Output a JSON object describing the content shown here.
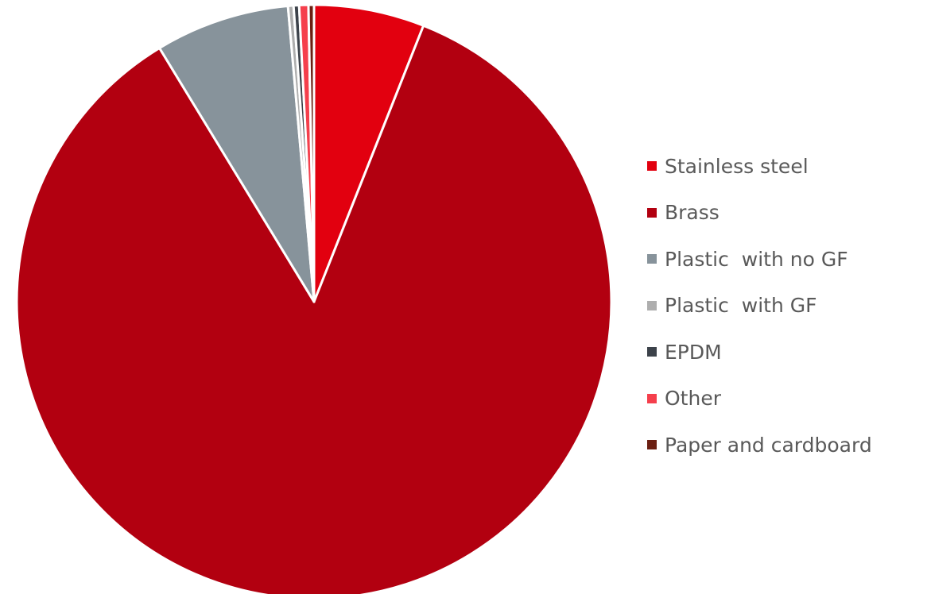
{
  "chart_data": {
    "type": "pie",
    "title": "",
    "legend_position": "right",
    "start_angle_deg": 0,
    "direction": "clockwise",
    "slices": [
      {
        "label": "Stainless steel",
        "value": 6.0,
        "color": "#E2000F"
      },
      {
        "label": "Brass",
        "value": 85.3,
        "color": "#B20010"
      },
      {
        "label": "Plastic  with no GF",
        "value": 7.3,
        "color": "#87939B"
      },
      {
        "label": "Plastic  with GF",
        "value": 0.3,
        "color": "#AEAEAE"
      },
      {
        "label": "EPDM",
        "value": 0.3,
        "color": "#3C424A"
      },
      {
        "label": "Other",
        "value": 0.5,
        "color": "#F53F4C"
      },
      {
        "label": "Paper and cardboard",
        "value": 0.3,
        "color": "#6B1F12"
      }
    ]
  }
}
